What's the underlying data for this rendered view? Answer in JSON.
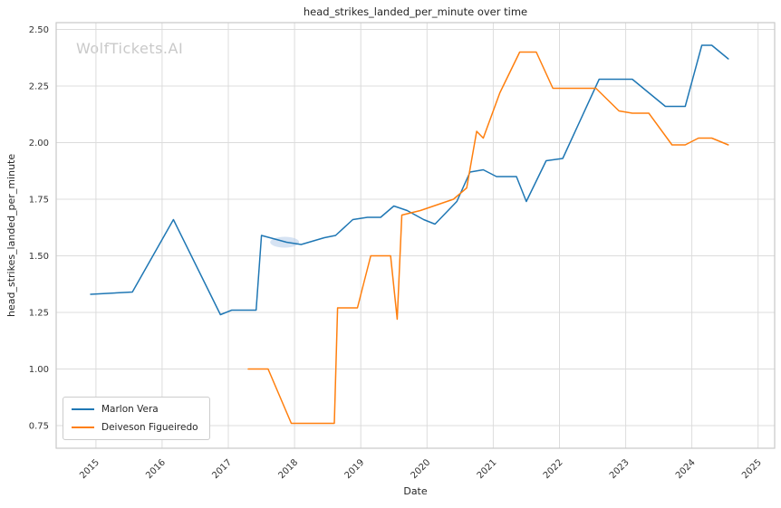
{
  "watermark": "WolfTickets.AI",
  "chart_data": {
    "type": "line",
    "title": "head_strikes_landed_per_minute over time",
    "xlabel": "Date",
    "ylabel": "head_strikes_landed_per_minute",
    "xlim": [
      2014.4,
      2025.25
    ],
    "ylim": [
      0.65,
      2.53
    ],
    "x_ticks": [
      2015,
      2016,
      2017,
      2018,
      2019,
      2020,
      2021,
      2022,
      2023,
      2024,
      2025
    ],
    "y_ticks": [
      0.75,
      1.0,
      1.25,
      1.5,
      1.75,
      2.0,
      2.25,
      2.5
    ],
    "grid": true,
    "legend_position": "lower-left",
    "series": [
      {
        "name": "Marlon Vera",
        "color": "#1f77b4",
        "x": [
          2014.92,
          2015.55,
          2016.17,
          2016.88,
          2017.05,
          2017.42,
          2017.5,
          2017.88,
          2018.1,
          2018.45,
          2018.62,
          2018.88,
          2019.1,
          2019.3,
          2019.5,
          2019.7,
          2019.95,
          2020.12,
          2020.45,
          2020.65,
          2020.85,
          2021.05,
          2021.35,
          2021.5,
          2021.8,
          2022.05,
          2022.6,
          2022.9,
          2023.1,
          2023.35,
          2023.6,
          2023.9,
          2024.15,
          2024.3,
          2024.55
        ],
        "y": [
          1.33,
          1.34,
          1.66,
          1.24,
          1.26,
          1.26,
          1.59,
          1.56,
          1.55,
          1.58,
          1.59,
          1.66,
          1.67,
          1.67,
          1.72,
          1.7,
          1.66,
          1.64,
          1.74,
          1.87,
          1.88,
          1.85,
          1.85,
          1.74,
          1.92,
          1.93,
          2.28,
          2.28,
          2.28,
          2.22,
          2.16,
          2.16,
          2.43,
          2.43,
          2.37
        ]
      },
      {
        "name": "Deiveson Figueiredo",
        "color": "#ff7f0e",
        "x": [
          2017.3,
          2017.6,
          2017.95,
          2018.6,
          2018.65,
          2018.95,
          2019.15,
          2019.45,
          2019.55,
          2019.62,
          2019.9,
          2020.2,
          2020.4,
          2020.6,
          2020.75,
          2020.85,
          2021.1,
          2021.4,
          2021.65,
          2021.9,
          2022.2,
          2022.55,
          2022.9,
          2023.1,
          2023.35,
          2023.7,
          2023.9,
          2024.1,
          2024.3,
          2024.55
        ],
        "y": [
          1.0,
          1.0,
          0.76,
          0.76,
          1.27,
          1.27,
          1.5,
          1.5,
          1.22,
          1.68,
          1.7,
          1.73,
          1.75,
          1.8,
          2.05,
          2.02,
          2.22,
          2.4,
          2.4,
          2.24,
          2.24,
          2.24,
          2.14,
          2.13,
          2.13,
          1.99,
          1.99,
          2.02,
          2.02,
          1.99
        ]
      }
    ],
    "annotations": [
      {
        "type": "highlight",
        "x": 2017.85,
        "y": 1.56,
        "color": "#aec7e8"
      }
    ]
  }
}
